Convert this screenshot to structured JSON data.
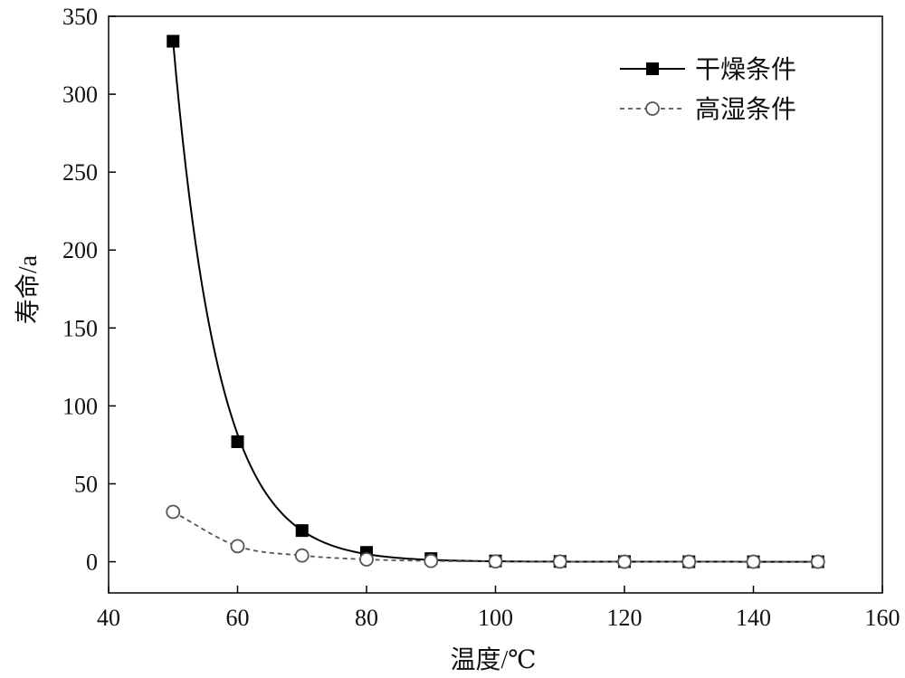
{
  "chart_data": {
    "type": "line",
    "xlabel": "温度/℃",
    "ylabel": "寿命/a",
    "xlim": [
      40,
      160
    ],
    "ylim": [
      -20,
      350
    ],
    "xticks": [
      40,
      60,
      80,
      100,
      120,
      140,
      160
    ],
    "yticks": [
      0,
      50,
      100,
      150,
      200,
      250,
      300,
      350
    ],
    "grid": false,
    "legend_position": "top-right",
    "series": [
      {
        "name": "干燥条件",
        "marker": "filled-square",
        "line": "solid",
        "color": "#000000",
        "x": [
          50,
          60,
          70,
          80,
          90,
          100,
          110,
          120,
          130,
          140,
          150
        ],
        "y": [
          334,
          77,
          20,
          6,
          2,
          0.5,
          0.2,
          0.1,
          0,
          0,
          0
        ]
      },
      {
        "name": "高湿条件",
        "marker": "open-circle",
        "line": "dashed",
        "color": "#555555",
        "x": [
          50,
          60,
          70,
          80,
          90,
          100,
          110,
          120,
          130,
          140,
          150
        ],
        "y": [
          32,
          10,
          4,
          1.5,
          0.5,
          0.2,
          0.1,
          0,
          0,
          0,
          0
        ]
      }
    ]
  }
}
